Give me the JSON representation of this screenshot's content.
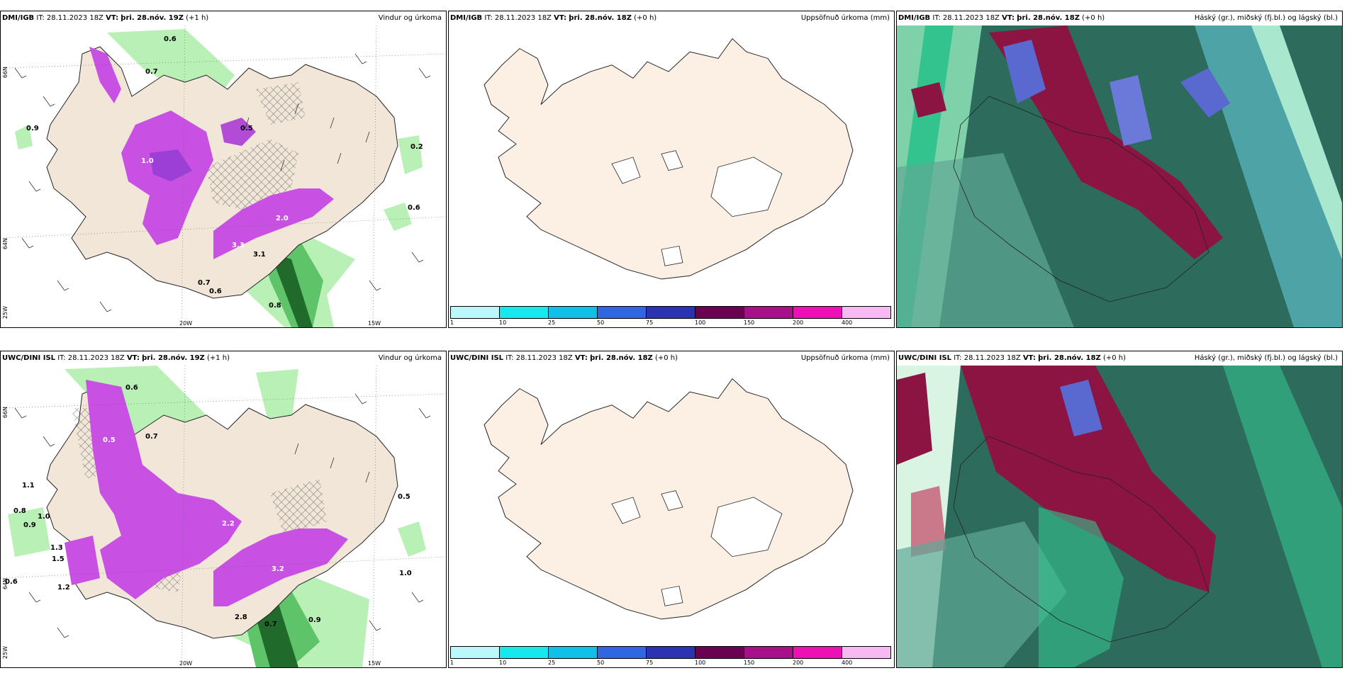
{
  "panels": [
    {
      "model": "DMI/IGB",
      "it_label": "IT:",
      "it": "28.11.2023 18Z",
      "vt_label": "VT:",
      "vt": "þri. 28.nóv. 19Z",
      "lead": "(+1 h)",
      "title": "Vindur og úrkoma"
    },
    {
      "model": "DMI/IGB",
      "it_label": "IT:",
      "it": "28.11.2023 18Z",
      "vt_label": "VT:",
      "vt": "þri. 28.nóv. 18Z",
      "lead": "(+0 h)",
      "title": "Uppsöfnuð úrkoma (mm)"
    },
    {
      "model": "DMI/IGB",
      "it_label": "IT:",
      "it": "28.11.2023 18Z",
      "vt_label": "VT:",
      "vt": "þri. 28.nóv. 18Z",
      "lead": "(+0 h)",
      "title": "Háský (gr.), miðský (fj.bl.) og lágský (bl.)"
    },
    {
      "model": "UWC/DINI ISL",
      "it_label": "IT:",
      "it": "28.11.2023 18Z",
      "vt_label": "VT:",
      "vt": "þri. 28.nóv. 19Z",
      "lead": "(+1 h)",
      "title": "Vindur og úrkoma"
    },
    {
      "model": "UWC/DINI ISL",
      "it_label": "IT:",
      "it": "28.11.2023 18Z",
      "vt_label": "VT:",
      "vt": "þri. 28.nóv. 18Z",
      "lead": "(+0 h)",
      "title": "Uppsöfnuð úrkoma (mm)"
    },
    {
      "model": "UWC/DINI ISL",
      "it_label": "IT:",
      "it": "28.11.2023 18Z",
      "vt_label": "VT:",
      "vt": "þri. 28.nóv. 18Z",
      "lead": "(+0 h)",
      "title": "Háský (gr.), miðský (fj.bl.) og lágský (bl.)"
    }
  ],
  "axis_labels": {
    "lat66": "66N",
    "lat64": "64N",
    "lon25": "25W",
    "lon20": "20W",
    "lon15": "15W"
  },
  "precip_labels_top": [
    "0.6",
    "0.7",
    "0.9",
    "1.0",
    "0.5",
    "2.0",
    "3.3",
    "3.1",
    "0.7",
    "0.6",
    "0.8",
    "0.6",
    "0.2"
  ],
  "precip_labels_bottom": [
    "0.6",
    "0.8",
    "0.5",
    "0.7",
    "1.0",
    "0.9",
    "1.5",
    "1.3",
    "1.2",
    "0.6",
    "2.8",
    "3.2",
    "0.7",
    "0.9",
    "1.0",
    "0.5",
    "2.2",
    "1.1"
  ],
  "legend": {
    "ticks": [
      "1",
      "10",
      "25",
      "50",
      "75",
      "100",
      "150",
      "200",
      "400"
    ],
    "colors": [
      "#b9f8fb",
      "#17e7ef",
      "#12bfe8",
      "#2f67e3",
      "#2b33b3",
      "#6b0251",
      "#a7108a",
      "#ee10b6",
      "#f6b9f1"
    ]
  },
  "colors": {
    "land": "#f1e6d8",
    "land_precip": "#fcefe4",
    "coast": "#222222",
    "magenta": "#c850e2",
    "green_light": "#b8f0b5",
    "green_dark": "#2b8c3c",
    "dark_teal": "#2d6b5c",
    "maroon": "#8c1442"
  }
}
